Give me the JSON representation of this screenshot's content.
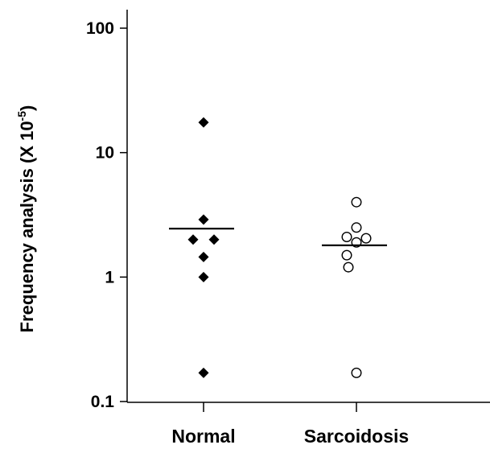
{
  "chart_data": {
    "type": "scatter",
    "title": "",
    "xlabel": "",
    "ylabel": {
      "main": "Frequency analysis (X 10",
      "superscript": "-5",
      "close": ")"
    },
    "yscale": "log",
    "ylim": [
      0.1,
      100
    ],
    "yticks": [
      {
        "value": 0.1,
        "label": "0.1"
      },
      {
        "value": 1,
        "label": "1"
      },
      {
        "value": 10,
        "label": "10"
      },
      {
        "value": 100,
        "label": "100"
      }
    ],
    "categories": [
      "Normal",
      "Sarcoidosis"
    ],
    "grid": false,
    "series": [
      {
        "category": "Normal",
        "marker": "filled-diamond",
        "color": "#000000",
        "values": [
          17.5,
          2.9,
          2.0,
          2.0,
          1.45,
          1.0,
          0.17
        ],
        "mean": 2.45
      },
      {
        "category": "Sarcoidosis",
        "marker": "open-circle",
        "color": "#000000",
        "values": [
          4.0,
          2.5,
          2.1,
          2.05,
          1.9,
          1.5,
          1.2,
          0.17
        ],
        "mean": 1.8
      }
    ]
  }
}
